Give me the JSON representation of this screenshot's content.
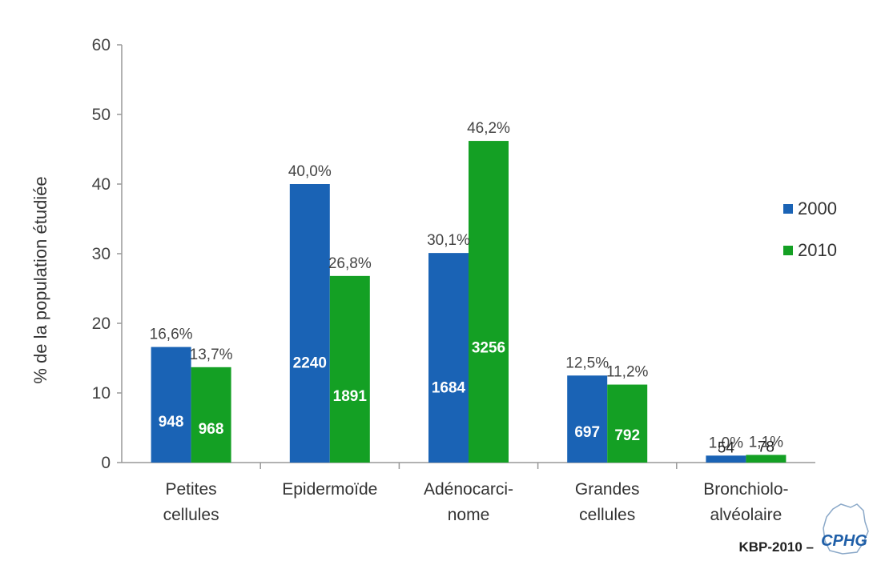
{
  "chart_data": {
    "type": "bar",
    "title": "",
    "ylabel": "% de la population étudiée",
    "xlabel": "",
    "ylim": [
      0,
      60
    ],
    "yticks": [
      0,
      10,
      20,
      30,
      40,
      50,
      60
    ],
    "grid": false,
    "legend_position": "right",
    "categories": [
      [
        "Petites",
        "cellules"
      ],
      [
        "Epidermoïde"
      ],
      [
        "Adénocarci-",
        "nome"
      ],
      [
        "Grandes",
        "cellules"
      ],
      [
        "Bronchiolo-",
        "alvéolaire"
      ]
    ],
    "series": [
      {
        "name": "2000",
        "color": "#1a63b5",
        "values": [
          16.6,
          40.0,
          30.1,
          12.5,
          1.0
        ],
        "pct_labels": [
          "16,6%",
          "40,0%",
          "30,1%",
          "12,5%",
          "1,0%"
        ],
        "count_labels": [
          "948",
          "2240",
          "1684",
          "697",
          "54"
        ]
      },
      {
        "name": "2010",
        "color": "#14a024",
        "values": [
          13.7,
          26.8,
          46.2,
          11.2,
          1.1
        ],
        "pct_labels": [
          "13,7%",
          "26,8%",
          "46,2%",
          "11,2%",
          "1,1%"
        ],
        "count_labels": [
          "968",
          "1891",
          "3256",
          "792",
          "78"
        ]
      }
    ]
  },
  "footer": {
    "credit": "KBP-2010 –",
    "logo_text": "CPHG"
  }
}
